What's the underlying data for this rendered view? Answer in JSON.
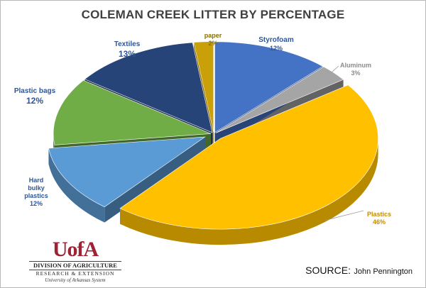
{
  "chart_data": {
    "type": "pie",
    "title": "COLEMAN CREEK LITTER BY PERCENTAGE",
    "slices": [
      {
        "label": "Styrofoam",
        "value": 12,
        "display": "12%",
        "color": "#4472c4"
      },
      {
        "label": "Aluminum",
        "value": 3,
        "display": "3%",
        "color": "#a5a5a5"
      },
      {
        "label": "Plastics",
        "value": 46,
        "display": "46%",
        "color": "#ffc000"
      },
      {
        "label": "Hard bulky plastics",
        "value": 12,
        "display": "12%",
        "color": "#5b9bd5"
      },
      {
        "label": "Plastic bags",
        "value": 12,
        "display": "12%",
        "color": "#70ad47"
      },
      {
        "label": "Textiles",
        "value": 13,
        "display": "13%",
        "color": "#264478"
      },
      {
        "label": "paper",
        "value": 2,
        "display": "2%",
        "color": "#c9a008"
      }
    ],
    "exploded": [
      "Plastics",
      "Hard bulky plastics"
    ],
    "style": "3d"
  },
  "logo": {
    "mark": "UofA",
    "line1": "DIVISION OF AGRICULTURE",
    "line2": "RESEARCH & EXTENSION",
    "line3": "University of Arkansas System"
  },
  "source": {
    "label": "SOURCE:",
    "name": "John Pennington"
  }
}
